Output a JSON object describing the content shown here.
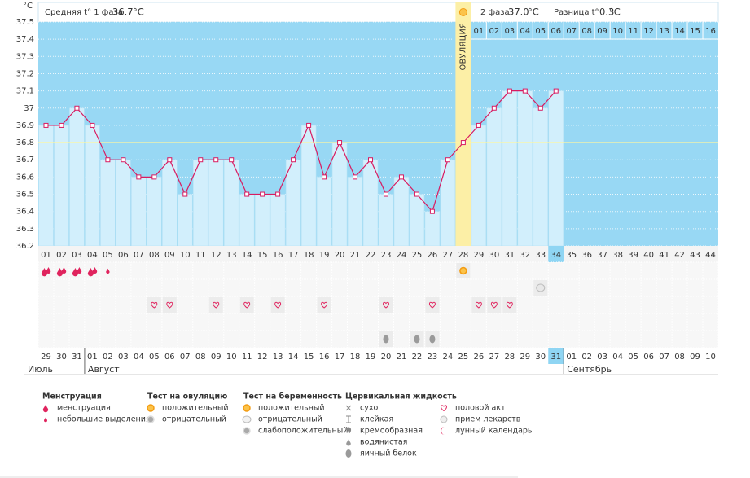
{
  "chart_data": {
    "type": "line",
    "y_unit": "°C",
    "ylim": [
      36.2,
      37.5
    ],
    "yticks": [
      36.2,
      36.3,
      36.4,
      36.5,
      36.6,
      36.7,
      36.8,
      36.9,
      37,
      37.1,
      37.2,
      37.3,
      37.4,
      37.5
    ],
    "grid": true,
    "color": "#d81b60",
    "categories": [
      "01",
      "02",
      "03",
      "04",
      "05",
      "06",
      "07",
      "08",
      "09",
      "10",
      "11",
      "12",
      "13",
      "14",
      "15",
      "16",
      "17",
      "18",
      "19",
      "20",
      "21",
      "22",
      "23",
      "24",
      "25",
      "26",
      "27",
      "28",
      "29",
      "30",
      "31",
      "32",
      "33",
      "34",
      "35",
      "36",
      "37",
      "38",
      "39",
      "40",
      "41",
      "42",
      "43",
      "44"
    ],
    "values": [
      36.9,
      36.9,
      37,
      36.9,
      36.7,
      36.7,
      36.6,
      36.6,
      36.7,
      36.5,
      36.7,
      36.7,
      36.7,
      36.5,
      36.5,
      36.5,
      36.7,
      36.9,
      36.6,
      36.8,
      36.6,
      36.7,
      36.5,
      36.6,
      36.5,
      36.4,
      36.7,
      36.8,
      36.9,
      37,
      37.1,
      37.1,
      37,
      37.1,
      null,
      null,
      null,
      null,
      null,
      null,
      null,
      null,
      null,
      null
    ],
    "coverline": 36.8,
    "ovulation_index": 27,
    "ovulation_label": "ОВУЛЯЦИЯ",
    "today_index": 33,
    "phase2_days": [
      "01",
      "02",
      "03",
      "04",
      "05",
      "06",
      "07",
      "08",
      "09",
      "10",
      "11",
      "12",
      "13",
      "14",
      "15",
      "16"
    ],
    "dates": [
      "29",
      "30",
      "31",
      "01",
      "02",
      "03",
      "04",
      "05",
      "06",
      "07",
      "08",
      "09",
      "10",
      "11",
      "12",
      "13",
      "14",
      "15",
      "16",
      "17",
      "18",
      "19",
      "20",
      "21",
      "22",
      "23",
      "24",
      "25",
      "26",
      "27",
      "28",
      "29",
      "30",
      "31",
      "01",
      "02",
      "03",
      "04",
      "05",
      "06",
      "07",
      "08",
      "09",
      "10"
    ],
    "weekend_indices": [
      5,
      6,
      12,
      13,
      19,
      20,
      26,
      27,
      40,
      41
    ],
    "weekend_color": "#e0245e",
    "months": [
      "Июль",
      "Август",
      "Сентябрь"
    ]
  },
  "header": {
    "phase1_label": "Средняя t° 1 фаза",
    "phase1_avg": 36.7,
    "phase2_label": "2 фаза",
    "phase2_avg": "37.0",
    "diff_label": "Разница t°",
    "diff": 0.3,
    "unit": "°C"
  },
  "symbols": {
    "menstruation": [
      0,
      1,
      2,
      3
    ],
    "spotting": [
      4
    ],
    "ovulation_test_positive": [
      27
    ],
    "pregnancy_test_negative": [
      32
    ],
    "intercourse": [
      7,
      8,
      11,
      13,
      15,
      18,
      22,
      25,
      28,
      29,
      30
    ],
    "egg_white": [
      22,
      24,
      25
    ]
  },
  "legend": [
    {
      "title": "Менструация",
      "items": [
        "менструация",
        "небольшие выделения"
      ]
    },
    {
      "title": "Тест на овуляцию",
      "items": [
        "положительный",
        "отрицательный"
      ]
    },
    {
      "title": "Тест на беременность",
      "items": [
        "положительный",
        "отрицательный",
        "слабоположительный"
      ]
    },
    {
      "title": "Цервикальная жидкость",
      "items": [
        "сухо",
        "клейкая",
        "кремообразная",
        "водянистая",
        "яичный белок"
      ]
    },
    {
      "items": [
        "половой акт",
        "прием лекарств",
        "лунный календарь"
      ]
    }
  ]
}
